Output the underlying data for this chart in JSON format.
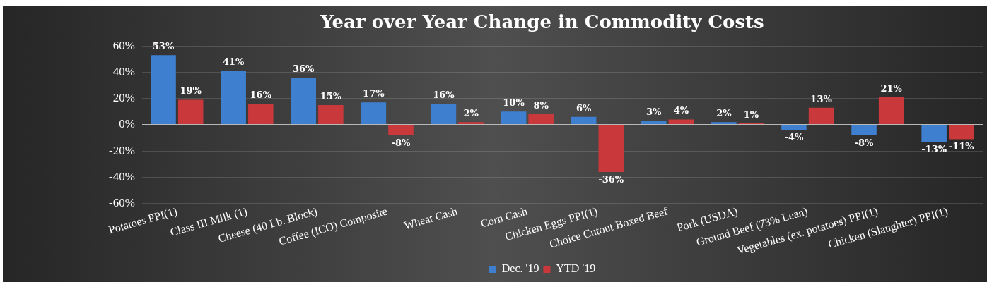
{
  "chart_data": {
    "type": "bar",
    "title": "Year over Year Change in Commodity Costs",
    "categories": [
      "Potatoes PPI(1)",
      "Class III Milk (1)",
      "Cheese (40 Lb. Block)",
      "Coffee (ICO) Composite",
      "Wheat Cash",
      "Corn Cash",
      "Chicken Eggs PPI(1)",
      "Choice Cutout Boxed Beef",
      "Pork (USDA)",
      "Ground Beef (73% Lean)",
      "Vegetables (ex. potatoes) PPI(1)",
      "Chicken (Slaughter) PPI(1)"
    ],
    "series": [
      {
        "name": "Dec. '19",
        "color": "#3f7fd0",
        "values": [
          53,
          41,
          36,
          17,
          16,
          10,
          6,
          3,
          2,
          -4,
          -8,
          -13
        ],
        "value_labels": [
          "53%",
          "41%",
          "36%",
          "17%",
          "16%",
          "10%",
          "6%",
          "3%",
          "2%",
          "-4%",
          "-8%",
          "-13%"
        ]
      },
      {
        "name": "YTD '19",
        "color": "#c9383b",
        "values": [
          19,
          16,
          15,
          -8,
          2,
          8,
          -36,
          4,
          1,
          13,
          21,
          -11
        ],
        "value_labels": [
          "19%",
          "16%",
          "15%",
          "-8%",
          "2%",
          "8%",
          "-36%",
          "4%",
          "1%",
          "13%",
          "21%",
          "-11%"
        ]
      }
    ],
    "ylim": [
      -60,
      60
    ],
    "yticks": [
      {
        "value": -60,
        "label": "-60%"
      },
      {
        "value": -40,
        "label": "-40%"
      },
      {
        "value": -20,
        "label": "-20%"
      },
      {
        "value": 0,
        "label": "0%"
      },
      {
        "value": 20,
        "label": "20%"
      },
      {
        "value": 40,
        "label": "40%"
      },
      {
        "value": 60,
        "label": "60%"
      }
    ],
    "grid": "y",
    "legend": "bottom"
  }
}
